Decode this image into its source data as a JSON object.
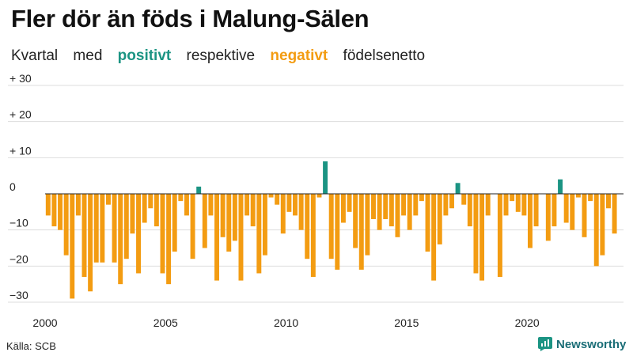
{
  "title": "Fler dör än föds i Malung-Sälen",
  "subtitle": {
    "part1": "Kvartal",
    "part2": "med",
    "positive_word": "positivt",
    "part3": "respektive",
    "negative_word": "negativt",
    "part4": "födelsenetto"
  },
  "source": "Källa: SCB",
  "brand": "Newsworthy",
  "colors": {
    "positive": "#1b9483",
    "negative": "#f39c12",
    "grid": "#dddddd",
    "zero_line": "#222222"
  },
  "chart_data": {
    "type": "bar",
    "ylim": [
      -30,
      30
    ],
    "yticks": [
      30,
      20,
      10,
      0,
      -10,
      -20,
      -30
    ],
    "ytick_labels": [
      "+ 30",
      "+ 20",
      "+ 10",
      "0",
      "−10",
      "−20",
      "−30"
    ],
    "xticks": [
      2000,
      2005,
      2010,
      2015,
      2020
    ],
    "x_start_year": 2000,
    "quarters_per_year": 4,
    "grid": true,
    "values": [
      -6,
      -9,
      -10,
      -17,
      -29,
      -6,
      -23,
      -27,
      -19,
      -19,
      -3,
      -19,
      -25,
      -18,
      -11,
      -22,
      -8,
      -4,
      -9,
      -22,
      -25,
      -16,
      -2,
      -6,
      -18,
      2,
      -15,
      -6,
      -24,
      -12,
      -16,
      -13,
      -24,
      -6,
      -9,
      -22,
      -17,
      -1,
      -3,
      -11,
      -5,
      -6,
      -10,
      -18,
      -23,
      -1,
      9,
      -18,
      -21,
      -8,
      -5,
      -15,
      -21,
      -17,
      -7,
      -10,
      -7,
      -9,
      -12,
      -6,
      -10,
      -6,
      -2,
      -16,
      -24,
      -14,
      -6,
      -4,
      3,
      -3,
      -9,
      -22,
      -24,
      -6,
      0,
      -23,
      -6,
      -2,
      -5,
      -6,
      -15,
      -9,
      0,
      -13,
      -9,
      4,
      -8,
      -10,
      -1,
      -12,
      -2,
      -20,
      -17,
      -4,
      -11
    ]
  }
}
